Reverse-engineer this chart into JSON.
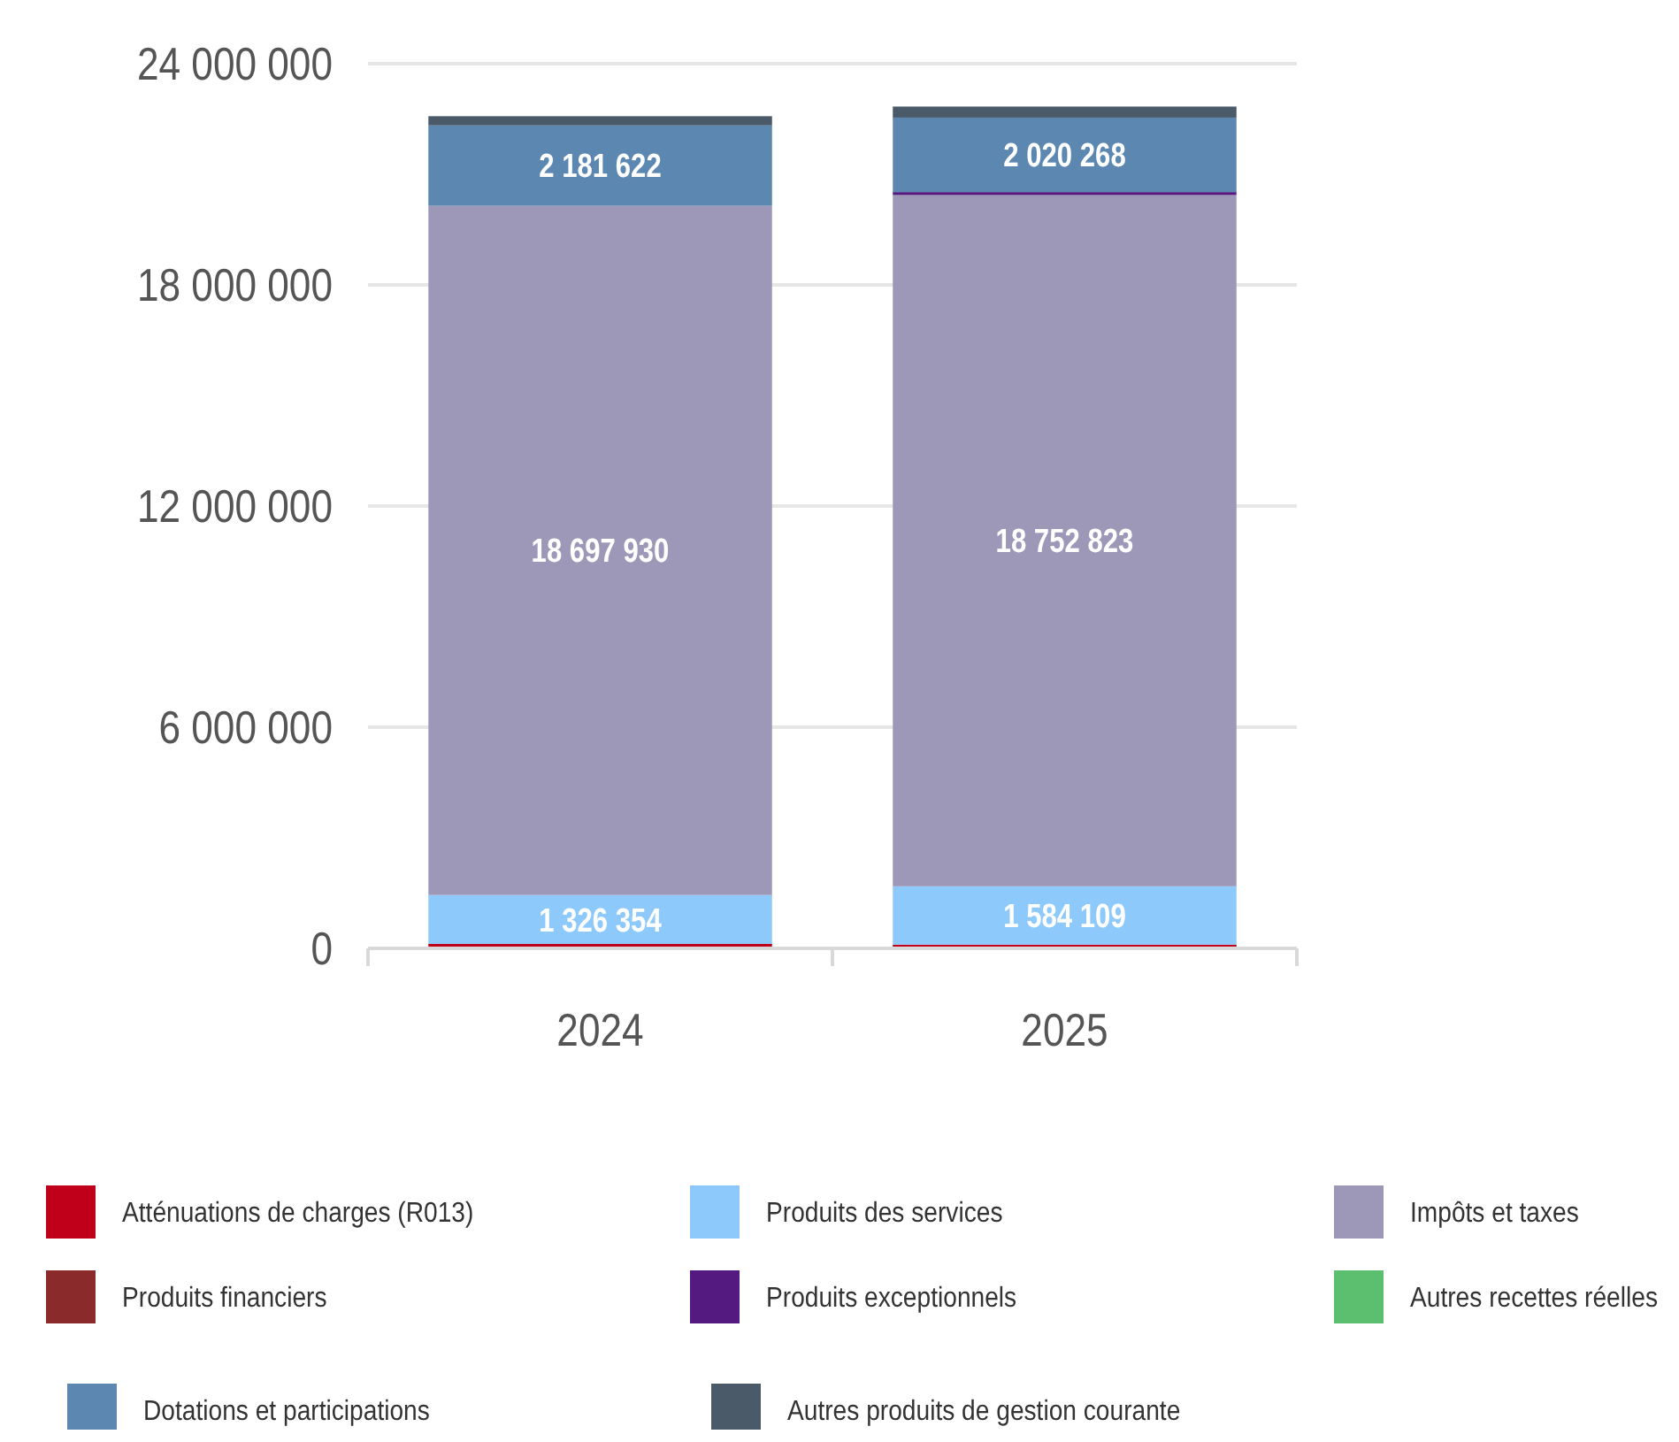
{
  "chart_data": {
    "type": "bar",
    "stacked": true,
    "categories": [
      "2024",
      "2025"
    ],
    "ylim": [
      0,
      24000000
    ],
    "yticks": [
      {
        "value": 0,
        "label": "0"
      },
      {
        "value": 6000000,
        "label": "6 000 000"
      },
      {
        "value": 12000000,
        "label": "12 000 000"
      },
      {
        "value": 18000000,
        "label": "18 000 000"
      },
      {
        "value": 24000000,
        "label": "24 000 000"
      }
    ],
    "grid": "y",
    "legend": "bottom",
    "series": [
      {
        "name": "Atténuations de charges (R013)",
        "color": "#c0001a",
        "values": [
          120000,
          100000
        ]
      },
      {
        "name": "Produits des services",
        "color": "#8ec9fc",
        "values": [
          1326354,
          1584109
        ],
        "value_labels": [
          "1 326 354",
          "1 584 109"
        ]
      },
      {
        "name": "Impôts et taxes",
        "color": "#9e98b8",
        "values": [
          18697930,
          18752823
        ],
        "value_labels": [
          "18 697 930",
          "18 752 823"
        ]
      },
      {
        "name": "Produits financiers",
        "color": "#8b2a2a",
        "values": [
          0,
          0
        ]
      },
      {
        "name": "Produits exceptionnels",
        "color": "#551a80",
        "values": [
          0,
          80000
        ]
      },
      {
        "name": "Autres recettes réelles",
        "color": "#5cbf70",
        "values": [
          0,
          0
        ]
      },
      {
        "name": "Dotations et participations",
        "color": "#5b87b0",
        "values": [
          2181622,
          2020268
        ],
        "value_labels": [
          "2 181 622",
          "2 020 268"
        ]
      },
      {
        "name": "Autres produits de gestion courante",
        "color": "#4a5a68",
        "values": [
          250000,
          300000
        ]
      }
    ]
  }
}
